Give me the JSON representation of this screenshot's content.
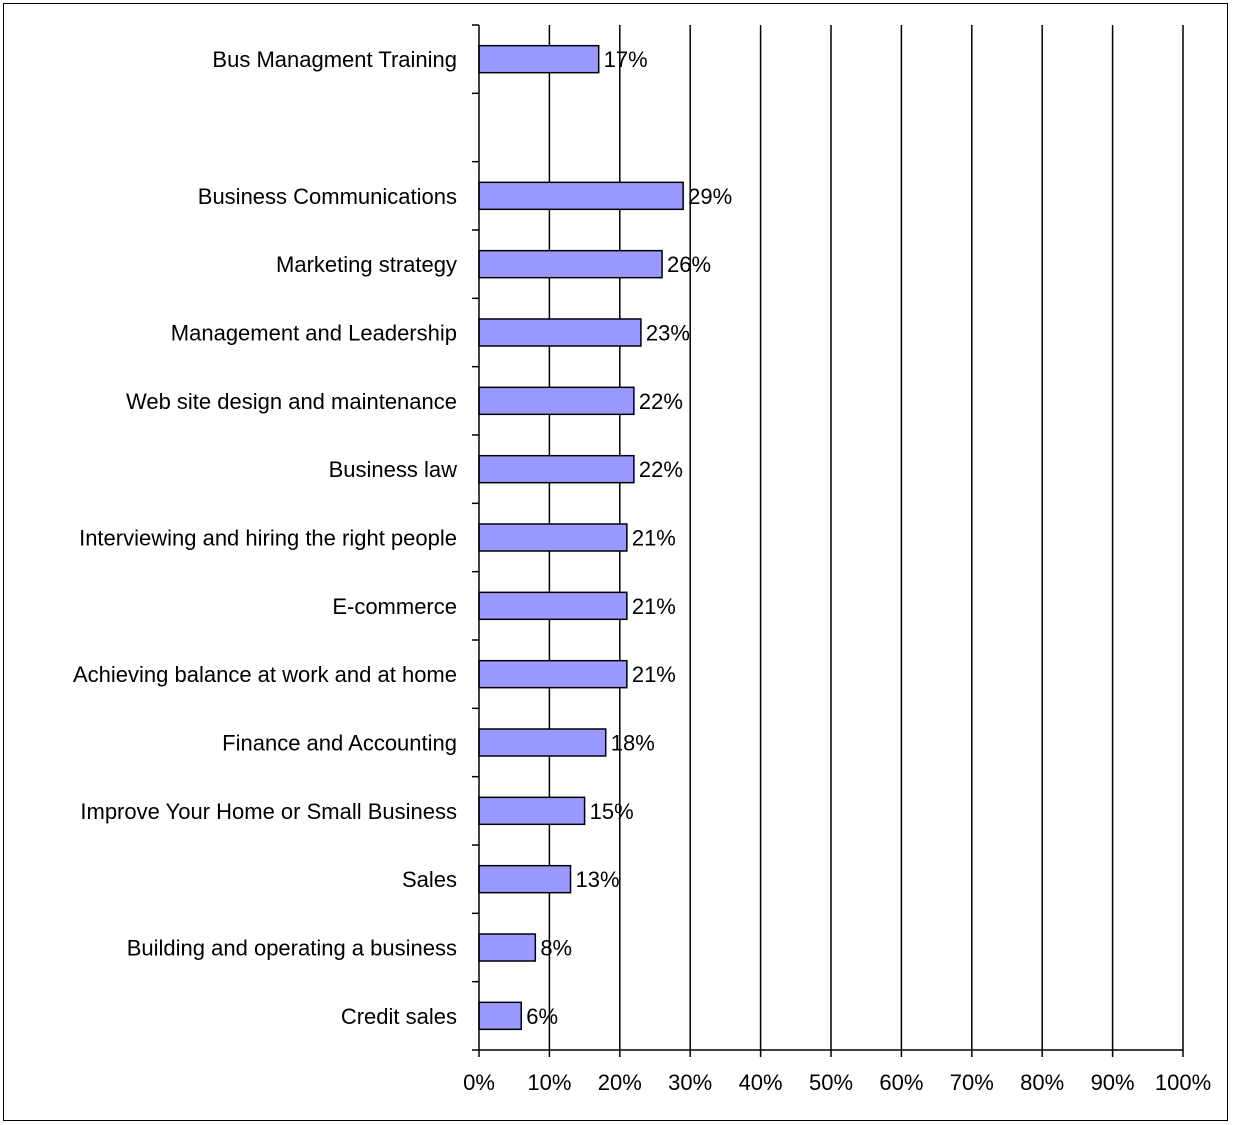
{
  "chart_data": {
    "type": "bar",
    "orientation": "horizontal",
    "categories": [
      "Bus Managment Training",
      "",
      "Business Communications",
      "Marketing strategy",
      "Management and Leadership",
      "Web site design and maintenance",
      "Business law",
      "Interviewing and hiring the right people",
      "E-commerce",
      "Achieving balance at work and at home",
      "Finance and Accounting",
      "Improve Your Home or Small Business",
      "Sales",
      "Building and operating a business",
      "Credit sales"
    ],
    "values": [
      17,
      null,
      29,
      26,
      23,
      22,
      22,
      21,
      21,
      21,
      18,
      15,
      13,
      8,
      6
    ],
    "data_labels": [
      "17%",
      "",
      "29%",
      "26%",
      "23%",
      "22%",
      "22%",
      "21%",
      "21%",
      "21%",
      "18%",
      "15%",
      "13%",
      "8%",
      "6%"
    ],
    "title": "",
    "xlabel": "",
    "ylabel": "",
    "xlim": [
      0,
      100
    ],
    "x_ticks": [
      0,
      10,
      20,
      30,
      40,
      50,
      60,
      70,
      80,
      90,
      100
    ],
    "x_tick_labels": [
      "0%",
      "10%",
      "20%",
      "30%",
      "40%",
      "50%",
      "60%",
      "70%",
      "80%",
      "90%",
      "100%"
    ],
    "grid": "vertical",
    "legend": "none",
    "bar_color": "#9999ff",
    "bar_edge_color": "#000000"
  }
}
